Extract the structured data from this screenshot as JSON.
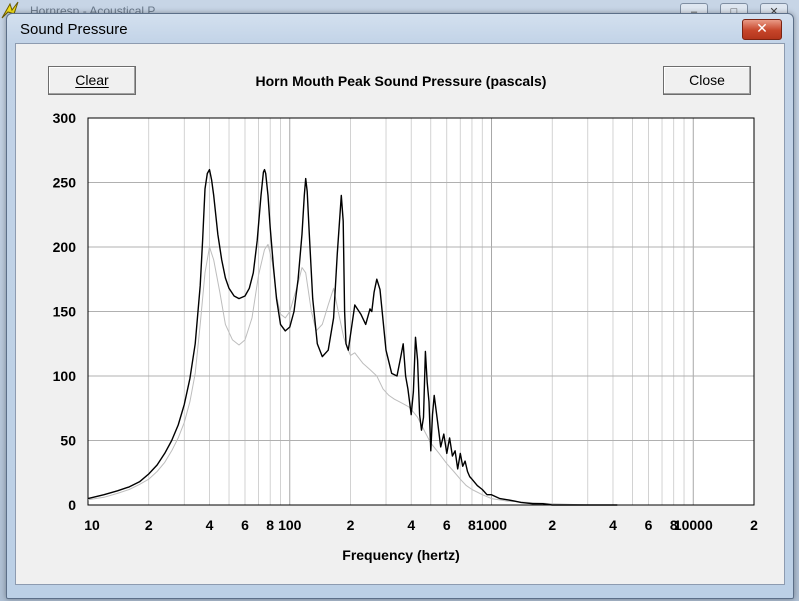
{
  "window": {
    "dialog_title": "Sound Pressure",
    "close_glyph": "✕",
    "bg_title": "Hornresp - Acoustical P...",
    "bg_controls": [
      "–",
      "□",
      "✕"
    ]
  },
  "toolbar": {
    "clear_label": "Clear",
    "close_label": "Close"
  },
  "icons": [
    "close-icon",
    "app-icon"
  ],
  "colors": {
    "main_series": "#000000",
    "secondary_series": "#bdbdbd",
    "grid": "#c8c8c8",
    "close_button": "#c6452a"
  },
  "chart_data": {
    "type": "line",
    "title": "Horn Mouth Peak Sound Pressure (pascals)",
    "xlabel": "Frequency (hertz)",
    "ylabel": "",
    "x_scale": "log",
    "xlim": [
      10,
      20000
    ],
    "ylim": [
      0,
      300
    ],
    "yticks": [
      "300",
      "250",
      "200",
      "150",
      "100",
      "50",
      "0"
    ],
    "xtick_labels": [
      {
        "x": 10,
        "label": "10"
      },
      {
        "x": 20,
        "label": "2"
      },
      {
        "x": 40,
        "label": "4"
      },
      {
        "x": 60,
        "label": "6"
      },
      {
        "x": 80,
        "label": "8"
      },
      {
        "x": 100,
        "label": "100"
      },
      {
        "x": 200,
        "label": "2"
      },
      {
        "x": 400,
        "label": "4"
      },
      {
        "x": 600,
        "label": "6"
      },
      {
        "x": 800,
        "label": "8"
      },
      {
        "x": 1000,
        "label": "1000"
      },
      {
        "x": 2000,
        "label": "2"
      },
      {
        "x": 4000,
        "label": "4"
      },
      {
        "x": 6000,
        "label": "6"
      },
      {
        "x": 8000,
        "label": "8"
      },
      {
        "x": 10000,
        "label": "10000"
      },
      {
        "x": 20000,
        "label": "2"
      }
    ],
    "grid": true,
    "series": [
      {
        "x": [
          10,
          12,
          14,
          16,
          18,
          20,
          22,
          24,
          26,
          28,
          30,
          32,
          34,
          36,
          37,
          38,
          39,
          40,
          41,
          42,
          44,
          46,
          48,
          50,
          53,
          56,
          60,
          63,
          66,
          69,
          72,
          74,
          75,
          76,
          78,
          80,
          83,
          86,
          90,
          95,
          100,
          105,
          110,
          115,
          118,
          120,
          122,
          125,
          130,
          137,
          145,
          155,
          165,
          172,
          180,
          184,
          187,
          190,
          195,
          200,
          210,
          225,
          238,
          250,
          255,
          262,
          270,
          280,
          300,
          320,
          340,
          355,
          365,
          375,
          385,
          400,
          410,
          420,
          430,
          440,
          450,
          460,
          470,
          480,
          490,
          500,
          510,
          520,
          540,
          560,
          580,
          600,
          620,
          640,
          660,
          680,
          700,
          720,
          740,
          760,
          780,
          800,
          850,
          900,
          950,
          1000,
          1100,
          1200,
          1300,
          1400,
          1600,
          1800,
          2000,
          2500,
          3000,
          3500,
          4000,
          4200
        ],
        "y": [
          5,
          8,
          11,
          14,
          18,
          24,
          31,
          40,
          50,
          62,
          78,
          98,
          125,
          170,
          205,
          245,
          257,
          260,
          252,
          240,
          210,
          190,
          176,
          168,
          162,
          160,
          162,
          168,
          180,
          205,
          240,
          258,
          260,
          257,
          240,
          215,
          185,
          160,
          140,
          135,
          138,
          150,
          175,
          210,
          240,
          253,
          243,
          210,
          160,
          125,
          115,
          120,
          145,
          195,
          240,
          220,
          150,
          125,
          120,
          132,
          155,
          148,
          140,
          152,
          150,
          165,
          175,
          167,
          120,
          102,
          100,
          115,
          125,
          100,
          90,
          70,
          88,
          130,
          112,
          70,
          58,
          68,
          119,
          95,
          80,
          42,
          70,
          85,
          65,
          45,
          55,
          40,
          52,
          38,
          42,
          28,
          40,
          30,
          34,
          26,
          22,
          20,
          15,
          12,
          8,
          8,
          5,
          4,
          3,
          2,
          1,
          1,
          0,
          0,
          0,
          0,
          0,
          0
        ]
      },
      {
        "x": [
          10,
          12,
          14,
          16,
          18,
          20,
          22,
          24,
          26,
          28,
          30,
          32,
          34,
          36,
          38,
          40,
          42,
          45,
          48,
          52,
          56,
          60,
          65,
          70,
          75,
          78,
          82,
          86,
          90,
          95,
          100,
          110,
          115,
          120,
          128,
          135,
          145,
          155,
          165,
          175,
          185,
          195,
          200,
          210,
          230,
          250,
          270,
          290,
          310,
          330,
          350,
          370,
          390,
          410,
          430,
          450,
          470,
          500,
          550,
          600,
          650,
          700,
          750,
          800,
          900,
          1000,
          1200,
          1500,
          2000,
          3000,
          4000
        ],
        "y": [
          4,
          6,
          9,
          12,
          16,
          20,
          26,
          33,
          42,
          52,
          64,
          80,
          102,
          140,
          180,
          200,
          190,
          165,
          140,
          128,
          124,
          128,
          145,
          178,
          198,
          202,
          188,
          162,
          148,
          145,
          150,
          172,
          184,
          180,
          150,
          135,
          140,
          155,
          168,
          148,
          130,
          120,
          116,
          118,
          110,
          105,
          100,
          90,
          85,
          82,
          80,
          78,
          76,
          72,
          68,
          62,
          56,
          48,
          40,
          32,
          26,
          20,
          15,
          12,
          8,
          5,
          3,
          2,
          1,
          0,
          0
        ]
      }
    ]
  }
}
